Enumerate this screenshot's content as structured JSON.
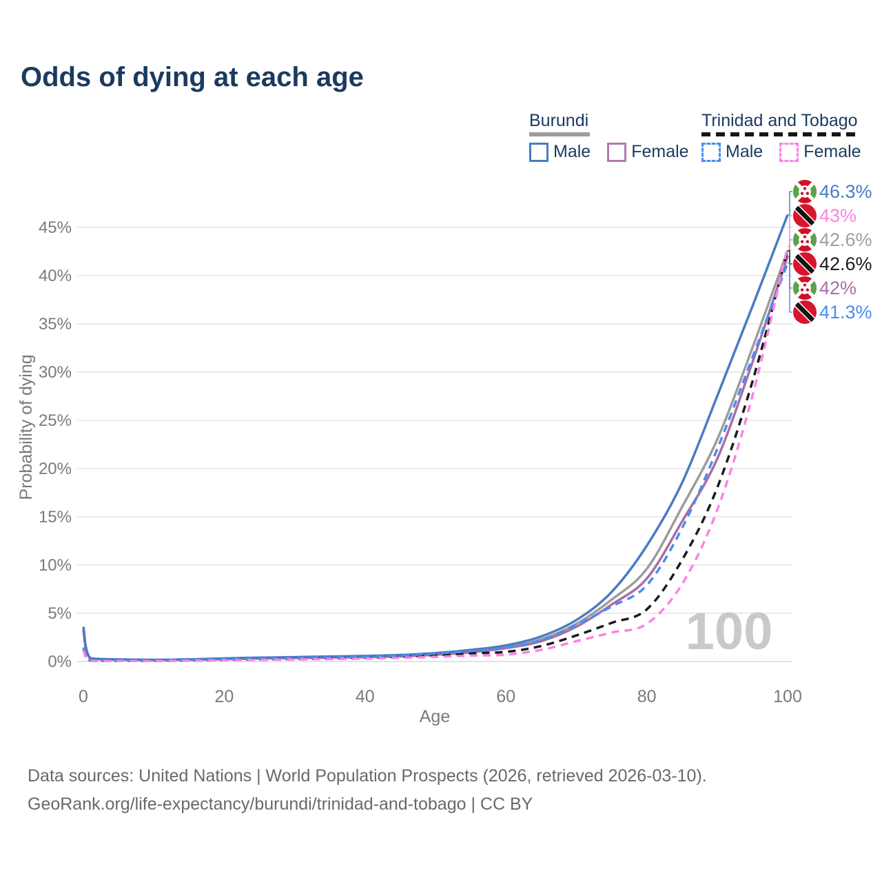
{
  "title": "Odds of dying at each age",
  "legend": {
    "burundi": {
      "label": "Burundi",
      "male": "Male",
      "female": "Female"
    },
    "trinidad_and_tobago": {
      "label": "Trinidad and Tobago",
      "male": "Male",
      "female": "Female"
    }
  },
  "watermark_age": "100",
  "footer": {
    "line1": "Data sources: United Nations | World Population Prospects (2026, retrieved 2026-03-10).",
    "line2": "GeoRank.org/life-expectancy/burundi/trinidad-and-tobago | CC BY"
  },
  "colors": {
    "title_text": "#1b3a5f",
    "axis_text": "#7a7a7a",
    "gridline": "#ebebeb",
    "zero_gridline": "#e2e2e2",
    "watermark": "#c9c9c9",
    "burundi_male": "#4a7bc4",
    "burundi_female": "#aa6ea5",
    "burundi_both": "#9c9c9c",
    "tt_male": "#4a8cf1",
    "tt_female": "#fb83e6",
    "tt_both": "#1a1a1a"
  },
  "chart_data": {
    "type": "line",
    "title": "Odds of dying at each age",
    "xlabel": "Age",
    "ylabel": "Probability of dying",
    "xlim": [
      0,
      100
    ],
    "ylim_percent": [
      0,
      48
    ],
    "grid": "horizontal-only",
    "legend_position": "top-right",
    "x_ticks": [
      {
        "value": 0,
        "label": "0"
      },
      {
        "value": 20,
        "label": "20"
      },
      {
        "value": 40,
        "label": "40"
      },
      {
        "value": 60,
        "label": "60"
      },
      {
        "value": 80,
        "label": "80"
      },
      {
        "value": 100,
        "label": "100"
      }
    ],
    "y_ticks": [
      {
        "value": 0,
        "label": "0%"
      },
      {
        "value": 5,
        "label": "5%"
      },
      {
        "value": 10,
        "label": "10%"
      },
      {
        "value": 15,
        "label": "15%"
      },
      {
        "value": 20,
        "label": "20%"
      },
      {
        "value": 25,
        "label": "25%"
      },
      {
        "value": 30,
        "label": "30%"
      },
      {
        "value": 35,
        "label": "35%"
      },
      {
        "value": 40,
        "label": "40%"
      },
      {
        "value": 45,
        "label": "45%"
      }
    ],
    "x_ages": [
      0,
      1,
      5,
      10,
      15,
      20,
      25,
      30,
      35,
      40,
      45,
      50,
      55,
      60,
      65,
      70,
      75,
      80,
      85,
      90,
      95,
      100
    ],
    "series": [
      {
        "name": "Burundi Both sexes",
        "country": "Burundi",
        "sex": "Both sexes",
        "color": "#9c9c9c",
        "style": "solid",
        "values_percent": [
          3.4,
          0.32,
          0.2,
          0.17,
          0.2,
          0.28,
          0.35,
          0.4,
          0.45,
          0.5,
          0.6,
          0.78,
          1.05,
          1.48,
          2.3,
          3.9,
          6.4,
          9.6,
          16.0,
          23.0,
          32.5,
          42.6
        ],
        "end_label": "42.6%",
        "label_color": "#9e9e9e",
        "label_slot": 2
      },
      {
        "name": "Burundi Female",
        "country": "Burundi",
        "sex": "Female",
        "color": "#aa6ea5",
        "style": "solid",
        "values_percent": [
          3.2,
          0.3,
          0.19,
          0.16,
          0.18,
          0.25,
          0.31,
          0.36,
          0.4,
          0.45,
          0.53,
          0.7,
          0.95,
          1.38,
          2.1,
          3.6,
          5.9,
          8.6,
          14.5,
          21.0,
          31.0,
          42.0
        ],
        "end_label": "42%",
        "label_color": "#aa6ea5",
        "label_slot": 4
      },
      {
        "name": "Burundi Male",
        "country": "Burundi",
        "sex": "Male",
        "color": "#4a7bc4",
        "style": "solid",
        "values_percent": [
          3.6,
          0.35,
          0.22,
          0.18,
          0.22,
          0.32,
          0.4,
          0.46,
          0.52,
          0.58,
          0.68,
          0.88,
          1.2,
          1.67,
          2.6,
          4.3,
          7.2,
          12.0,
          18.5,
          27.5,
          36.8,
          46.3
        ],
        "end_label": "46.3%",
        "label_color": "#4a7bc4",
        "label_slot": 0
      },
      {
        "name": "Trinidad and Tobago Both sexes",
        "country": "Trinidad and Tobago",
        "sex": "Both sexes",
        "color": "#1a1a1a",
        "style": "dashed",
        "values_percent": [
          1.3,
          0.09,
          0.06,
          0.07,
          0.11,
          0.17,
          0.23,
          0.28,
          0.33,
          0.39,
          0.49,
          0.64,
          0.85,
          1.0,
          1.6,
          2.7,
          4.0,
          5.4,
          10.5,
          18.0,
          29.0,
          42.6
        ],
        "end_label": "42.6%",
        "label_color": "#1a1a1a",
        "label_slot": 3
      },
      {
        "name": "Trinidad and Tobago Male",
        "country": "Trinidad and Tobago",
        "sex": "Male",
        "color": "#4a8cf1",
        "style": "dashed",
        "values_percent": [
          1.45,
          0.1,
          0.07,
          0.08,
          0.13,
          0.22,
          0.3,
          0.36,
          0.42,
          0.5,
          0.62,
          0.82,
          1.08,
          1.43,
          2.2,
          3.8,
          5.7,
          7.9,
          13.8,
          22.0,
          31.5,
          41.3
        ],
        "end_label": "41.3%",
        "label_color": "#4a8cf1",
        "label_slot": 5
      },
      {
        "name": "Trinidad and Tobago Female",
        "country": "Trinidad and Tobago",
        "sex": "Female",
        "color": "#fb83e6",
        "style": "dashed",
        "values_percent": [
          1.15,
          0.08,
          0.05,
          0.06,
          0.09,
          0.12,
          0.17,
          0.21,
          0.25,
          0.3,
          0.38,
          0.48,
          0.6,
          0.71,
          1.2,
          2.1,
          3.0,
          3.9,
          8.0,
          15.7,
          27.5,
          43.0
        ],
        "end_label": "43%",
        "label_color": "#fb83e6",
        "label_slot": 1
      }
    ]
  }
}
